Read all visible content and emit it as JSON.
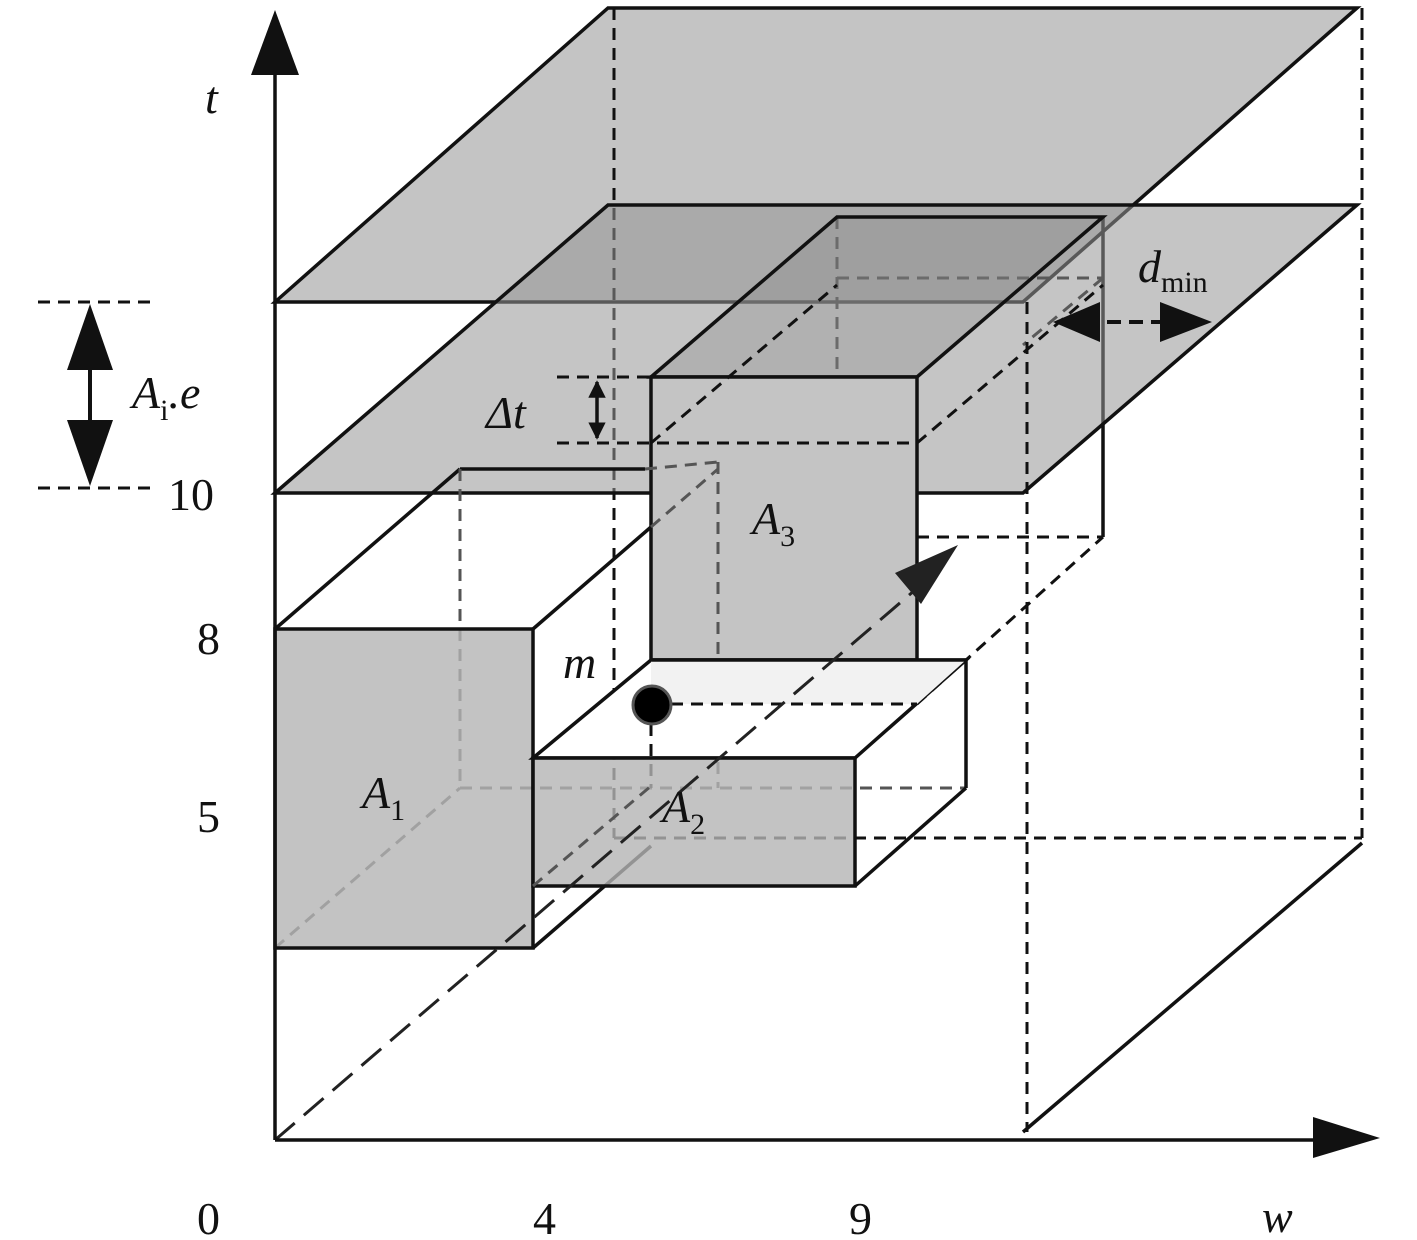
{
  "axes": {
    "vertical": {
      "label": "t",
      "ticks": [
        "10",
        "8",
        "5"
      ]
    },
    "horizontal": {
      "label": "w",
      "ticks": [
        "0",
        "4",
        "9"
      ]
    }
  },
  "labels": {
    "interval": {
      "main": "A",
      "sub": "i",
      "suffix": ".e"
    },
    "delta": "Δt",
    "distance": {
      "main": "d",
      "sub": "min"
    },
    "areas": [
      {
        "main": "A",
        "sub": "1"
      },
      {
        "main": "A",
        "sub": "2"
      },
      {
        "main": "A",
        "sub": "3"
      }
    ],
    "point": "m"
  }
}
